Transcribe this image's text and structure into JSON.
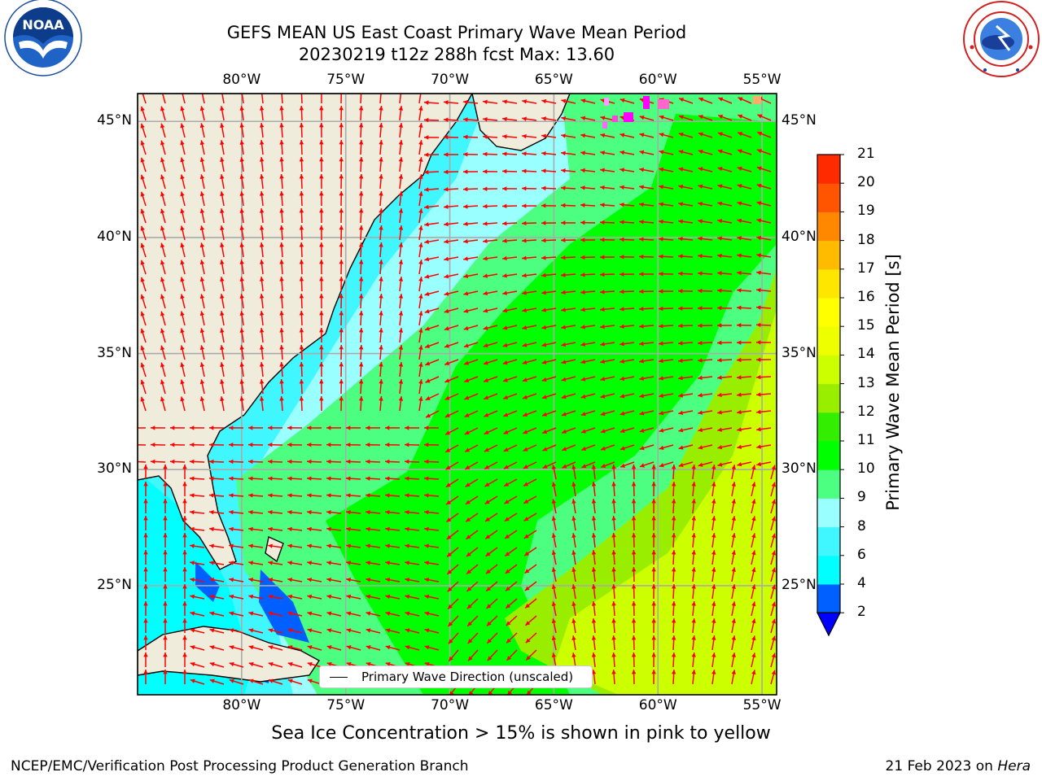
{
  "title": {
    "line1": "GEFS MEAN US East Coast Primary Wave Mean Period",
    "line2": "20230219 t12z 288h fcst   Max: 13.60"
  },
  "logos": {
    "left": {
      "icon": "noaa-logo",
      "text": "NOAA",
      "ring_text": "NATIONAL OCEANIC AND ATMOSPHERIC ADMINISTRATION · U.S. DEPARTMENT OF COMMERCE"
    },
    "right": {
      "icon": "nws-logo",
      "ring_text": "NATIONAL WEATHER SERVICE"
    }
  },
  "map": {
    "lon_ticks": [
      "80°W",
      "75°W",
      "70°W",
      "65°W",
      "60°W",
      "55°W"
    ],
    "lat_ticks": [
      "45°N",
      "40°N",
      "35°N",
      "30°N",
      "25°N"
    ],
    "lon_range": [
      -85,
      -54.3
    ],
    "lat_range": [
      20.3,
      46.2
    ],
    "grid": true,
    "land_color": "#efecdc",
    "vector_color": "#ff0000"
  },
  "legend": {
    "label": "Primary Wave Direction (unscaled)",
    "placement": "lower-center"
  },
  "colorbar": {
    "label": "Primary Wave Mean Period [s]",
    "ticks": [
      "2",
      "4",
      "6",
      "8",
      "9",
      "10",
      "11",
      "12",
      "13",
      "14",
      "15",
      "16",
      "17",
      "18",
      "19",
      "20",
      "21"
    ],
    "colors": [
      "#0060ff",
      "#00ffff",
      "#40f6ff",
      "#99ffff",
      "#4dff80",
      "#00ff00",
      "#33ee00",
      "#99ee00",
      "#ccff00",
      "#eeff00",
      "#ffff00",
      "#ffe600",
      "#ffbb00",
      "#ff8800",
      "#ff5500",
      "#ff2a00"
    ],
    "extend_below_color": "#0000ff"
  },
  "caption": "Sea Ice Concentration > 15% is shown in pink to yellow",
  "footer": {
    "left": "NCEP/EMC/Verification Post Processing Product Generation Branch",
    "right_date": "21 Feb 2023 on",
    "right_host": "Hera"
  }
}
